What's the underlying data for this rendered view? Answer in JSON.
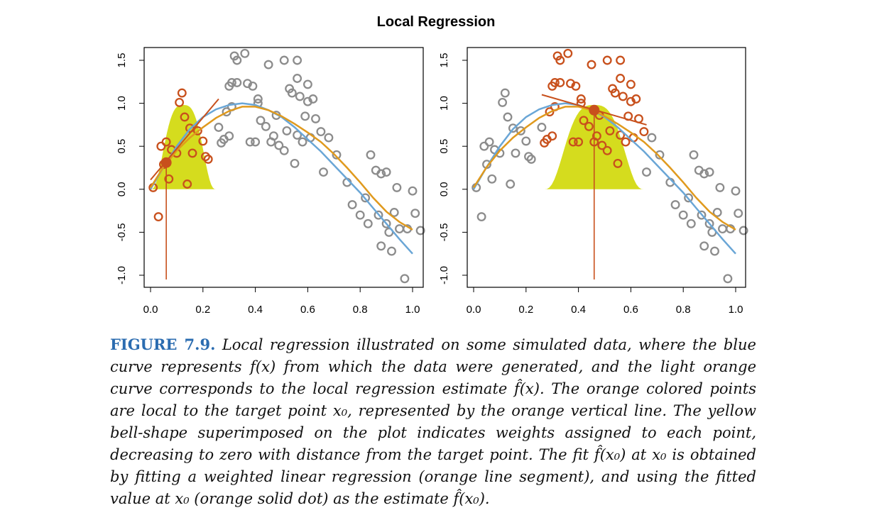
{
  "colors": {
    "local_points": "#c8501c",
    "other_points": "#8c8c8c",
    "true_curve": "#6aa6d6",
    "fit_curve": "#e09a1e",
    "kernel_fill": "#d5dc1e",
    "caption_label": "#2b6cb0"
  },
  "chart_data": {
    "title": "Local Regression",
    "type": "scatter",
    "xlim": [
      0,
      1
    ],
    "ylim": [
      -1.0,
      1.6
    ],
    "x_ticks": [
      "0.0",
      "0.2",
      "0.4",
      "0.6",
      "0.8",
      "1.0"
    ],
    "y_ticks": [
      "-1.0",
      "-0.5",
      "0.0",
      "0.5",
      "1.0",
      "1.5"
    ],
    "grid": false,
    "points": [
      [
        0.01,
        0.02
      ],
      [
        0.03,
        -0.32
      ],
      [
        0.04,
        0.5
      ],
      [
        0.05,
        0.29
      ],
      [
        0.06,
        0.55
      ],
      [
        0.07,
        0.12
      ],
      [
        0.08,
        0.46
      ],
      [
        0.1,
        0.42
      ],
      [
        0.11,
        1.01
      ],
      [
        0.12,
        1.12
      ],
      [
        0.13,
        0.84
      ],
      [
        0.14,
        0.06
      ],
      [
        0.15,
        0.71
      ],
      [
        0.16,
        0.42
      ],
      [
        0.18,
        0.68
      ],
      [
        0.2,
        0.56
      ],
      [
        0.21,
        0.38
      ],
      [
        0.22,
        0.35
      ],
      [
        0.26,
        0.72
      ],
      [
        0.27,
        0.54
      ],
      [
        0.28,
        0.58
      ],
      [
        0.29,
        0.9
      ],
      [
        0.3,
        1.2
      ],
      [
        0.3,
        0.62
      ],
      [
        0.31,
        1.24
      ],
      [
        0.31,
        0.96
      ],
      [
        0.32,
        1.55
      ],
      [
        0.33,
        1.5
      ],
      [
        0.33,
        1.24
      ],
      [
        0.36,
        1.58
      ],
      [
        0.37,
        1.23
      ],
      [
        0.38,
        0.55
      ],
      [
        0.39,
        1.2
      ],
      [
        0.4,
        0.55
      ],
      [
        0.41,
        1.05
      ],
      [
        0.41,
        1.0
      ],
      [
        0.42,
        0.8
      ],
      [
        0.44,
        0.73
      ],
      [
        0.45,
        1.45
      ],
      [
        0.46,
        0.55
      ],
      [
        0.47,
        0.62
      ],
      [
        0.48,
        0.86
      ],
      [
        0.49,
        0.51
      ],
      [
        0.51,
        1.5
      ],
      [
        0.51,
        0.45
      ],
      [
        0.52,
        0.68
      ],
      [
        0.53,
        1.17
      ],
      [
        0.54,
        1.12
      ],
      [
        0.55,
        0.3
      ],
      [
        0.56,
        1.5
      ],
      [
        0.56,
        1.29
      ],
      [
        0.56,
        0.63
      ],
      [
        0.57,
        1.08
      ],
      [
        0.58,
        0.55
      ],
      [
        0.59,
        0.85
      ],
      [
        0.6,
        1.02
      ],
      [
        0.6,
        1.22
      ],
      [
        0.61,
        0.6
      ],
      [
        0.62,
        1.05
      ],
      [
        0.63,
        0.82
      ],
      [
        0.65,
        0.67
      ],
      [
        0.66,
        0.2
      ],
      [
        0.68,
        0.6
      ],
      [
        0.71,
        0.4
      ],
      [
        0.75,
        0.08
      ],
      [
        0.77,
        -0.18
      ],
      [
        0.8,
        -0.3
      ],
      [
        0.82,
        -0.1
      ],
      [
        0.83,
        -0.4
      ],
      [
        0.84,
        0.4
      ],
      [
        0.86,
        0.22
      ],
      [
        0.87,
        -0.3
      ],
      [
        0.88,
        -0.66
      ],
      [
        0.88,
        0.18
      ],
      [
        0.9,
        -0.4
      ],
      [
        0.9,
        0.2
      ],
      [
        0.91,
        -0.5
      ],
      [
        0.92,
        -0.72
      ],
      [
        0.93,
        -0.27
      ],
      [
        0.94,
        0.02
      ],
      [
        0.95,
        -0.46
      ],
      [
        0.97,
        -1.04
      ],
      [
        0.98,
        -0.46
      ],
      [
        1.0,
        -0.02
      ],
      [
        1.01,
        -0.28
      ],
      [
        1.03,
        -0.48
      ]
    ],
    "true_curve": [
      [
        0.0,
        0.0
      ],
      [
        0.05,
        0.26
      ],
      [
        0.1,
        0.5
      ],
      [
        0.15,
        0.7
      ],
      [
        0.2,
        0.84
      ],
      [
        0.25,
        0.93
      ],
      [
        0.3,
        0.98
      ],
      [
        0.35,
        1.0
      ],
      [
        0.4,
        0.98
      ],
      [
        0.45,
        0.92
      ],
      [
        0.5,
        0.84
      ],
      [
        0.55,
        0.72
      ],
      [
        0.6,
        0.58
      ],
      [
        0.65,
        0.44
      ],
      [
        0.7,
        0.28
      ],
      [
        0.75,
        0.12
      ],
      [
        0.8,
        -0.04
      ],
      [
        0.85,
        -0.22
      ],
      [
        0.9,
        -0.4
      ],
      [
        0.95,
        -0.58
      ],
      [
        1.0,
        -0.75
      ]
    ],
    "fit_curve": [
      [
        0.0,
        0.02
      ],
      [
        0.05,
        0.26
      ],
      [
        0.1,
        0.45
      ],
      [
        0.15,
        0.6
      ],
      [
        0.2,
        0.72
      ],
      [
        0.25,
        0.83
      ],
      [
        0.3,
        0.91
      ],
      [
        0.35,
        0.96
      ],
      [
        0.4,
        0.96
      ],
      [
        0.45,
        0.92
      ],
      [
        0.5,
        0.85
      ],
      [
        0.55,
        0.76
      ],
      [
        0.6,
        0.66
      ],
      [
        0.65,
        0.55
      ],
      [
        0.7,
        0.41
      ],
      [
        0.75,
        0.25
      ],
      [
        0.8,
        0.08
      ],
      [
        0.85,
        -0.1
      ],
      [
        0.9,
        -0.26
      ],
      [
        0.95,
        -0.38
      ],
      [
        1.0,
        -0.47
      ]
    ],
    "panels": [
      {
        "x0": 0.06,
        "fit_at_x0": 0.31,
        "window": [
          0.0,
          0.25
        ],
        "segment": [
          [
            0.0,
            0.11
          ],
          [
            0.26,
            1.05
          ]
        ]
      },
      {
        "x0": 0.46,
        "fit_at_x0": 0.92,
        "window": [
          0.27,
          0.65
        ],
        "segment": [
          [
            0.26,
            1.1
          ],
          [
            0.66,
            0.75
          ]
        ]
      }
    ]
  },
  "caption": {
    "label": "FIGURE 7.9.",
    "text": "Local regression illustrated on some simulated data, where the blue curve represents f(x) from which the data were generated, and the light orange curve corresponds to the local regression estimate f̂(x). The orange colored points are local to the target point x₀, represented by the orange vertical line. The yellow bell-shape superimposed on the plot indicates weights assigned to each point, decreasing to zero with distance from the target point. The fit f̂(x₀) at x₀ is obtained by fitting a weighted linear regression (orange line segment), and using the fitted value at x₀ (orange solid dot) as the estimate f̂(x₀)."
  }
}
